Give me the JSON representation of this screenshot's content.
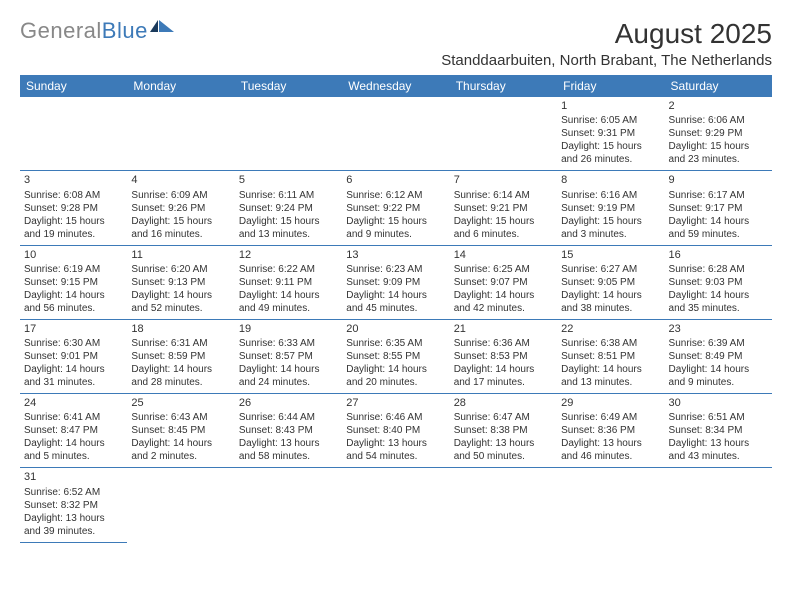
{
  "logo": {
    "text_gray": "General",
    "text_blue": "Blue"
  },
  "title": "August 2025",
  "location": "Standdaarbuiten, North Brabant, The Netherlands",
  "colors": {
    "header_bg": "#3d7ab8",
    "header_text": "#ffffff",
    "border": "#3d7ab8",
    "body_text": "#333333",
    "logo_gray": "#888888",
    "logo_blue": "#3d7ab8",
    "background": "#ffffff"
  },
  "weekdays": [
    "Sunday",
    "Monday",
    "Tuesday",
    "Wednesday",
    "Thursday",
    "Friday",
    "Saturday"
  ],
  "weeks": [
    [
      null,
      null,
      null,
      null,
      null,
      {
        "num": "1",
        "sunrise": "Sunrise: 6:05 AM",
        "sunset": "Sunset: 9:31 PM",
        "daylight": "Daylight: 15 hours and 26 minutes."
      },
      {
        "num": "2",
        "sunrise": "Sunrise: 6:06 AM",
        "sunset": "Sunset: 9:29 PM",
        "daylight": "Daylight: 15 hours and 23 minutes."
      }
    ],
    [
      {
        "num": "3",
        "sunrise": "Sunrise: 6:08 AM",
        "sunset": "Sunset: 9:28 PM",
        "daylight": "Daylight: 15 hours and 19 minutes."
      },
      {
        "num": "4",
        "sunrise": "Sunrise: 6:09 AM",
        "sunset": "Sunset: 9:26 PM",
        "daylight": "Daylight: 15 hours and 16 minutes."
      },
      {
        "num": "5",
        "sunrise": "Sunrise: 6:11 AM",
        "sunset": "Sunset: 9:24 PM",
        "daylight": "Daylight: 15 hours and 13 minutes."
      },
      {
        "num": "6",
        "sunrise": "Sunrise: 6:12 AM",
        "sunset": "Sunset: 9:22 PM",
        "daylight": "Daylight: 15 hours and 9 minutes."
      },
      {
        "num": "7",
        "sunrise": "Sunrise: 6:14 AM",
        "sunset": "Sunset: 9:21 PM",
        "daylight": "Daylight: 15 hours and 6 minutes."
      },
      {
        "num": "8",
        "sunrise": "Sunrise: 6:16 AM",
        "sunset": "Sunset: 9:19 PM",
        "daylight": "Daylight: 15 hours and 3 minutes."
      },
      {
        "num": "9",
        "sunrise": "Sunrise: 6:17 AM",
        "sunset": "Sunset: 9:17 PM",
        "daylight": "Daylight: 14 hours and 59 minutes."
      }
    ],
    [
      {
        "num": "10",
        "sunrise": "Sunrise: 6:19 AM",
        "sunset": "Sunset: 9:15 PM",
        "daylight": "Daylight: 14 hours and 56 minutes."
      },
      {
        "num": "11",
        "sunrise": "Sunrise: 6:20 AM",
        "sunset": "Sunset: 9:13 PM",
        "daylight": "Daylight: 14 hours and 52 minutes."
      },
      {
        "num": "12",
        "sunrise": "Sunrise: 6:22 AM",
        "sunset": "Sunset: 9:11 PM",
        "daylight": "Daylight: 14 hours and 49 minutes."
      },
      {
        "num": "13",
        "sunrise": "Sunrise: 6:23 AM",
        "sunset": "Sunset: 9:09 PM",
        "daylight": "Daylight: 14 hours and 45 minutes."
      },
      {
        "num": "14",
        "sunrise": "Sunrise: 6:25 AM",
        "sunset": "Sunset: 9:07 PM",
        "daylight": "Daylight: 14 hours and 42 minutes."
      },
      {
        "num": "15",
        "sunrise": "Sunrise: 6:27 AM",
        "sunset": "Sunset: 9:05 PM",
        "daylight": "Daylight: 14 hours and 38 minutes."
      },
      {
        "num": "16",
        "sunrise": "Sunrise: 6:28 AM",
        "sunset": "Sunset: 9:03 PM",
        "daylight": "Daylight: 14 hours and 35 minutes."
      }
    ],
    [
      {
        "num": "17",
        "sunrise": "Sunrise: 6:30 AM",
        "sunset": "Sunset: 9:01 PM",
        "daylight": "Daylight: 14 hours and 31 minutes."
      },
      {
        "num": "18",
        "sunrise": "Sunrise: 6:31 AM",
        "sunset": "Sunset: 8:59 PM",
        "daylight": "Daylight: 14 hours and 28 minutes."
      },
      {
        "num": "19",
        "sunrise": "Sunrise: 6:33 AM",
        "sunset": "Sunset: 8:57 PM",
        "daylight": "Daylight: 14 hours and 24 minutes."
      },
      {
        "num": "20",
        "sunrise": "Sunrise: 6:35 AM",
        "sunset": "Sunset: 8:55 PM",
        "daylight": "Daylight: 14 hours and 20 minutes."
      },
      {
        "num": "21",
        "sunrise": "Sunrise: 6:36 AM",
        "sunset": "Sunset: 8:53 PM",
        "daylight": "Daylight: 14 hours and 17 minutes."
      },
      {
        "num": "22",
        "sunrise": "Sunrise: 6:38 AM",
        "sunset": "Sunset: 8:51 PM",
        "daylight": "Daylight: 14 hours and 13 minutes."
      },
      {
        "num": "23",
        "sunrise": "Sunrise: 6:39 AM",
        "sunset": "Sunset: 8:49 PM",
        "daylight": "Daylight: 14 hours and 9 minutes."
      }
    ],
    [
      {
        "num": "24",
        "sunrise": "Sunrise: 6:41 AM",
        "sunset": "Sunset: 8:47 PM",
        "daylight": "Daylight: 14 hours and 5 minutes."
      },
      {
        "num": "25",
        "sunrise": "Sunrise: 6:43 AM",
        "sunset": "Sunset: 8:45 PM",
        "daylight": "Daylight: 14 hours and 2 minutes."
      },
      {
        "num": "26",
        "sunrise": "Sunrise: 6:44 AM",
        "sunset": "Sunset: 8:43 PM",
        "daylight": "Daylight: 13 hours and 58 minutes."
      },
      {
        "num": "27",
        "sunrise": "Sunrise: 6:46 AM",
        "sunset": "Sunset: 8:40 PM",
        "daylight": "Daylight: 13 hours and 54 minutes."
      },
      {
        "num": "28",
        "sunrise": "Sunrise: 6:47 AM",
        "sunset": "Sunset: 8:38 PM",
        "daylight": "Daylight: 13 hours and 50 minutes."
      },
      {
        "num": "29",
        "sunrise": "Sunrise: 6:49 AM",
        "sunset": "Sunset: 8:36 PM",
        "daylight": "Daylight: 13 hours and 46 minutes."
      },
      {
        "num": "30",
        "sunrise": "Sunrise: 6:51 AM",
        "sunset": "Sunset: 8:34 PM",
        "daylight": "Daylight: 13 hours and 43 minutes."
      }
    ],
    [
      {
        "num": "31",
        "sunrise": "Sunrise: 6:52 AM",
        "sunset": "Sunset: 8:32 PM",
        "daylight": "Daylight: 13 hours and 39 minutes."
      },
      null,
      null,
      null,
      null,
      null,
      null
    ]
  ]
}
